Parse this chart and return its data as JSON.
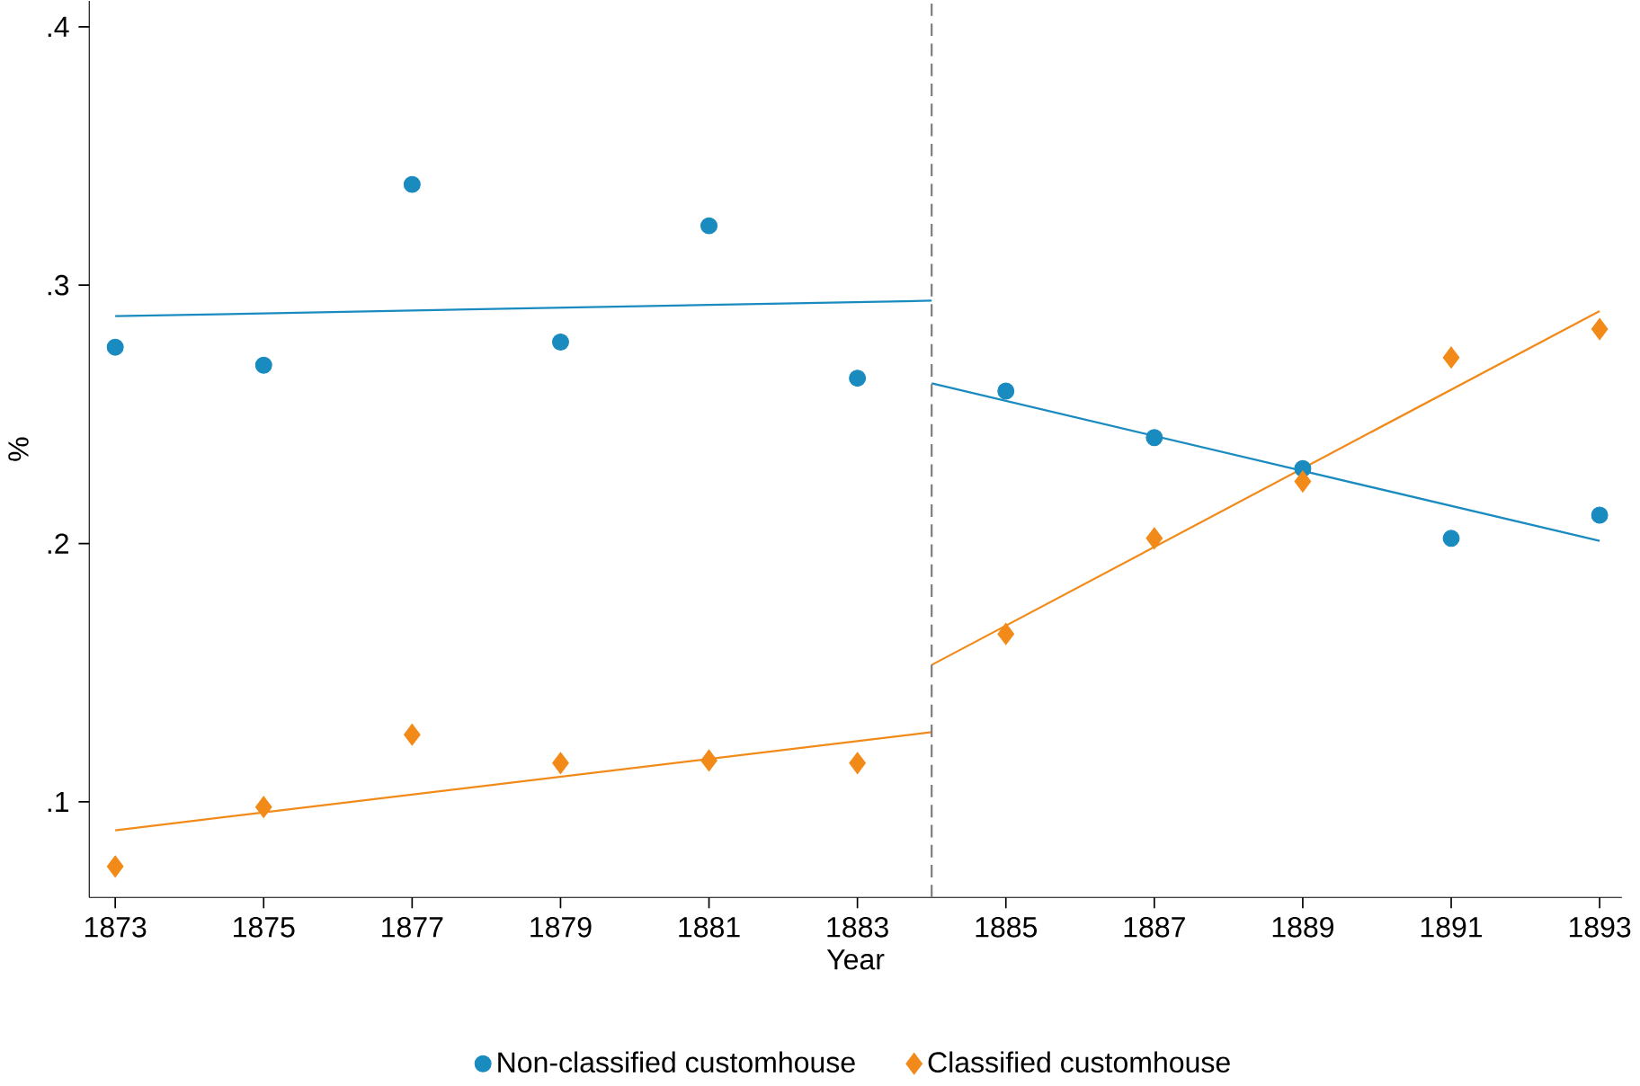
{
  "chart_data": {
    "type": "scatter",
    "xlabel": "Year",
    "ylabel": "%",
    "x": [
      1873,
      1875,
      1877,
      1879,
      1881,
      1883,
      1885,
      1887,
      1889,
      1891,
      1893
    ],
    "series": [
      {
        "name": "Non-classified customhouse",
        "color": "#1a8bbf",
        "marker": "circle",
        "values": [
          0.276,
          0.269,
          0.339,
          0.278,
          0.323,
          0.264,
          0.259,
          0.241,
          0.229,
          0.202,
          0.211
        ]
      },
      {
        "name": "Classified customhouse",
        "color": "#f28a1a",
        "marker": "diamond",
        "values": [
          0.075,
          0.098,
          0.126,
          0.115,
          0.116,
          0.115,
          0.165,
          0.202,
          0.224,
          0.272,
          0.283
        ]
      },
      {
        "type": "line",
        "color": "#1a8bbf",
        "x": [
          1873,
          1884
        ],
        "values": [
          0.288,
          0.294
        ]
      },
      {
        "type": "line",
        "color": "#1a8bbf",
        "x": [
          1884,
          1893
        ],
        "values": [
          0.262,
          0.201
        ]
      },
      {
        "type": "line",
        "color": "#f28a1a",
        "x": [
          1873,
          1884
        ],
        "values": [
          0.089,
          0.127
        ]
      },
      {
        "type": "line",
        "color": "#f28a1a",
        "x": [
          1884,
          1893
        ],
        "values": [
          0.153,
          0.29
        ]
      }
    ],
    "xlim": [
      1872.65,
      1893.3
    ],
    "ylim": [
      0.063,
      0.41
    ],
    "xticks": [
      1873,
      1875,
      1877,
      1879,
      1881,
      1883,
      1885,
      1887,
      1889,
      1891,
      1893
    ],
    "yticks": [
      {
        "value": 0.1,
        "label": ".1"
      },
      {
        "value": 0.2,
        "label": ".2"
      },
      {
        "value": 0.3,
        "label": ".3"
      },
      {
        "value": 0.4,
        "label": ".4"
      }
    ],
    "ref_lines": [
      {
        "axis": "x",
        "value": 1884,
        "color": "#7f7f7f",
        "line_style": "dashed"
      }
    ],
    "grid": false,
    "legend": "bottom"
  }
}
